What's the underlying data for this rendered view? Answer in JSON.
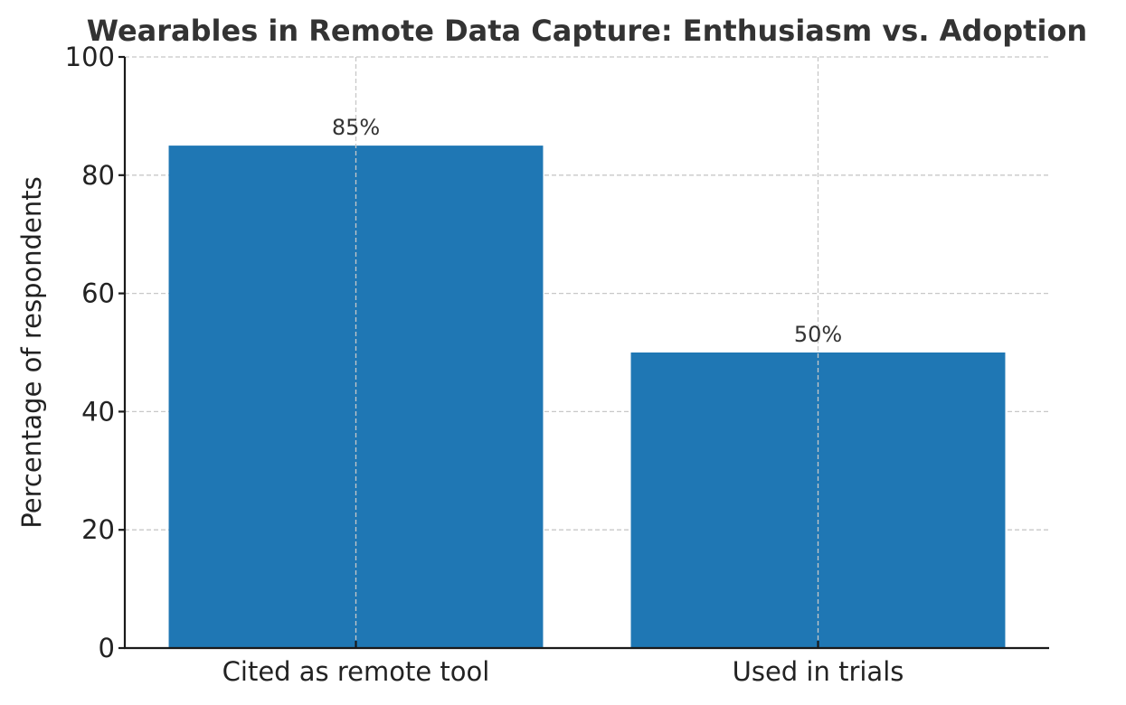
{
  "chart_data": {
    "type": "bar",
    "title": "Wearables in Remote Data Capture: Enthusiasm vs. Adoption",
    "xlabel": "",
    "ylabel": "Percentage of respondents",
    "categories": [
      "Cited as remote tool",
      "Used in trials"
    ],
    "values": [
      85,
      50
    ],
    "data_labels": [
      "85%",
      "50%"
    ],
    "ylim": [
      0,
      100
    ],
    "yticks": [
      0,
      20,
      40,
      60,
      80,
      100
    ],
    "ytick_labels": [
      "0",
      "20",
      "40",
      "60",
      "80",
      "100"
    ],
    "grid": true,
    "bar_color": "#1f77b4"
  }
}
